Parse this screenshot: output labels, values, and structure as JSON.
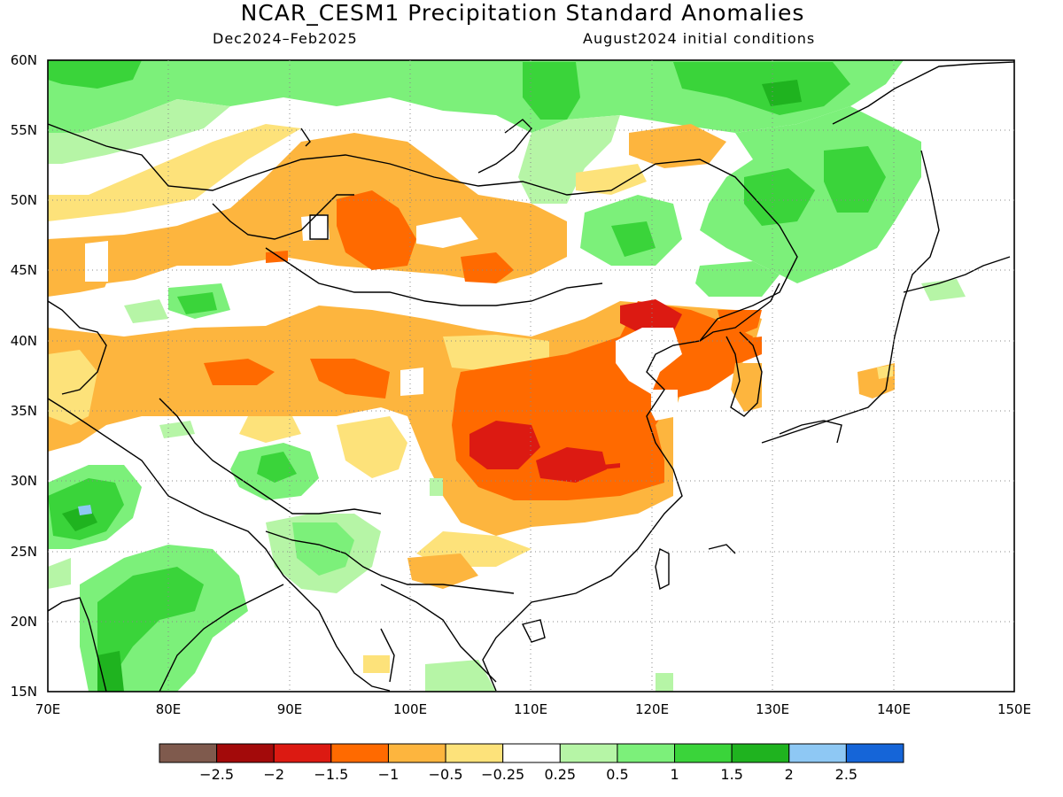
{
  "title": "NCAR_CESM1 Precipitation Standard Anomalies",
  "period": "Dec2024–Feb2025",
  "initial_conditions": "August2024 initial conditions",
  "map": {
    "lat_labels": [
      "60N",
      "55N",
      "50N",
      "45N",
      "40N",
      "35N",
      "30N",
      "25N",
      "20N",
      "15N"
    ],
    "lon_labels": [
      "70E",
      "80E",
      "90E",
      "100E",
      "110E",
      "120E",
      "130E",
      "140E",
      "150E"
    ]
  },
  "colorbar": {
    "colors": [
      "#7f5a4d",
      "#a30a0a",
      "#dc1a12",
      "#ff6a00",
      "#fdb53e",
      "#fde27a",
      "#ffffff",
      "#b6f5a6",
      "#7cf07a",
      "#3ad43a",
      "#1fb31f",
      "#8ec8f4",
      "#1565d8"
    ],
    "labels": [
      "−2.5",
      "−2",
      "−1.5",
      "−1",
      "−0.5",
      "−0.25",
      "0.25",
      "0.5",
      "1",
      "1.5",
      "2",
      "2.5"
    ]
  }
}
